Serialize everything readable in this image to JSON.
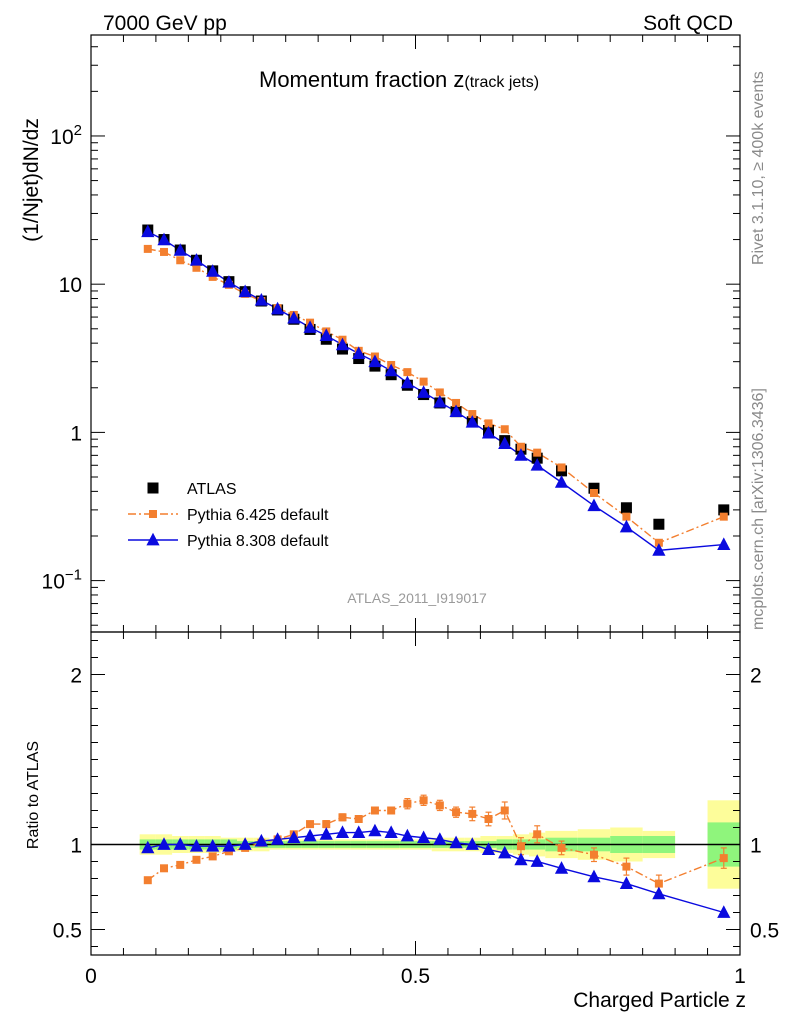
{
  "header": {
    "left": "7000 GeV pp",
    "right": "Soft QCD"
  },
  "side": {
    "rivet": "Rivet 3.1.10, ≥ 400k events",
    "mcplots": "mcplots.cern.ch [arXiv:1306.3436]"
  },
  "chart_data": {
    "type": "scatter",
    "title_main": "Momentum fraction z",
    "title_sub": "(track jets)",
    "analysis_tag": "ATLAS_2011_I919017",
    "xlabel": "Charged Particle z",
    "ylabel": "(1/Njet)dN/dz",
    "ratio_ylabel": "Ratio to ATLAS",
    "xlim": [
      0,
      1
    ],
    "ylim": [
      0.045,
      480
    ],
    "yscale": "log",
    "ratio_ylim": [
      0.35,
      2.25
    ],
    "x_ticks": [
      "0",
      "0.5",
      "1"
    ],
    "y_ticks": [
      {
        "value": 100,
        "base": "10",
        "exp": "2"
      },
      {
        "value": 10,
        "base": "10",
        "exp": ""
      },
      {
        "value": 1,
        "base": "1",
        "exp": ""
      },
      {
        "value": 0.1,
        "base": "10",
        "exp": "−1"
      }
    ],
    "ratio_ticks": [
      "0.5",
      "1",
      "2"
    ],
    "legend_position": "bottom-left",
    "series": [
      {
        "name": "ATLAS",
        "color": "#000000",
        "marker": "square",
        "x": [
          0.0875,
          0.1125,
          0.1375,
          0.1625,
          0.1875,
          0.2125,
          0.2375,
          0.2625,
          0.2875,
          0.3125,
          0.3375,
          0.3625,
          0.3875,
          0.4125,
          0.4375,
          0.4625,
          0.4875,
          0.5125,
          0.5375,
          0.5625,
          0.5875,
          0.6125,
          0.6375,
          0.6625,
          0.6875,
          0.725,
          0.775,
          0.825,
          0.875,
          0.975
        ],
        "y": [
          23.2,
          20.0,
          17.0,
          14.5,
          12.3,
          10.4,
          8.9,
          7.7,
          6.7,
          5.8,
          4.95,
          4.25,
          3.65,
          3.15,
          2.8,
          2.45,
          2.08,
          1.8,
          1.58,
          1.38,
          1.18,
          1.03,
          0.88,
          0.77,
          0.67,
          0.55,
          0.42,
          0.31,
          0.24,
          0.3
        ]
      },
      {
        "name": "Pythia 6.425 default",
        "color": "#f37f2f",
        "marker": "square",
        "line": "dash-dot",
        "x": [
          0.0875,
          0.1125,
          0.1375,
          0.1625,
          0.1875,
          0.2125,
          0.2375,
          0.2625,
          0.2875,
          0.3125,
          0.3375,
          0.3625,
          0.3875,
          0.4125,
          0.4375,
          0.4625,
          0.4875,
          0.5125,
          0.5375,
          0.5625,
          0.5875,
          0.6125,
          0.6375,
          0.6625,
          0.6875,
          0.725,
          0.775,
          0.825,
          0.875,
          0.975
        ],
        "y": [
          17.3,
          16.5,
          14.5,
          12.9,
          11.2,
          9.9,
          8.6,
          7.7,
          6.9,
          6.2,
          5.5,
          4.8,
          4.22,
          3.55,
          3.25,
          2.85,
          2.55,
          2.2,
          1.86,
          1.58,
          1.33,
          1.15,
          1.05,
          0.8,
          0.73,
          0.58,
          0.39,
          0.27,
          0.18,
          0.27
        ]
      },
      {
        "name": "Pythia 8.308 default",
        "color": "#0a0adf",
        "marker": "triangle",
        "line": "solid",
        "x": [
          0.0875,
          0.1125,
          0.1375,
          0.1625,
          0.1875,
          0.2125,
          0.2375,
          0.2625,
          0.2875,
          0.3125,
          0.3375,
          0.3625,
          0.3875,
          0.4125,
          0.4375,
          0.4625,
          0.4875,
          0.5125,
          0.5375,
          0.5625,
          0.5875,
          0.6125,
          0.6375,
          0.6625,
          0.6875,
          0.725,
          0.775,
          0.825,
          0.875,
          0.975
        ],
        "y": [
          22.6,
          19.9,
          16.9,
          14.5,
          12.2,
          10.3,
          8.9,
          7.8,
          6.8,
          5.9,
          5.1,
          4.5,
          3.9,
          3.4,
          3.0,
          2.6,
          2.16,
          1.86,
          1.6,
          1.38,
          1.17,
          0.99,
          0.84,
          0.7,
          0.6,
          0.46,
          0.32,
          0.23,
          0.16,
          0.175
        ]
      }
    ],
    "ratio_series": [
      {
        "name": "Pythia 6.425 default",
        "x": [
          0.0875,
          0.1125,
          0.1375,
          0.1625,
          0.1875,
          0.2125,
          0.2375,
          0.2625,
          0.2875,
          0.3125,
          0.3375,
          0.3625,
          0.3875,
          0.4125,
          0.4375,
          0.4625,
          0.4875,
          0.5125,
          0.5375,
          0.5625,
          0.5875,
          0.6125,
          0.6375,
          0.6625,
          0.6875,
          0.725,
          0.775,
          0.825,
          0.875,
          0.975
        ],
        "y": [
          0.79,
          0.86,
          0.88,
          0.91,
          0.93,
          0.96,
          0.98,
          1.01,
          1.03,
          1.06,
          1.12,
          1.12,
          1.16,
          1.15,
          1.2,
          1.2,
          1.24,
          1.26,
          1.23,
          1.19,
          1.18,
          1.15,
          1.2,
          0.99,
          1.06,
          0.98,
          0.94,
          0.87,
          0.77,
          0.92
        ],
        "err": [
          0.01,
          0.01,
          0.01,
          0.01,
          0.01,
          0.01,
          0.01,
          0.01,
          0.01,
          0.01,
          0.01,
          0.02,
          0.02,
          0.02,
          0.02,
          0.02,
          0.03,
          0.03,
          0.03,
          0.03,
          0.04,
          0.04,
          0.05,
          0.05,
          0.05,
          0.04,
          0.04,
          0.05,
          0.05,
          0.06
        ]
      },
      {
        "name": "Pythia 8.308 default",
        "x": [
          0.0875,
          0.1125,
          0.1375,
          0.1625,
          0.1875,
          0.2125,
          0.2375,
          0.2625,
          0.2875,
          0.3125,
          0.3375,
          0.3625,
          0.3875,
          0.4125,
          0.4375,
          0.4625,
          0.4875,
          0.5125,
          0.5375,
          0.5625,
          0.5875,
          0.6125,
          0.6375,
          0.6625,
          0.6875,
          0.725,
          0.775,
          0.825,
          0.875,
          0.975
        ],
        "y": [
          0.98,
          1.0,
          1.0,
          0.99,
          0.99,
          0.99,
          1.0,
          1.02,
          1.03,
          1.04,
          1.05,
          1.06,
          1.07,
          1.07,
          1.08,
          1.07,
          1.05,
          1.04,
          1.03,
          1.01,
          1.0,
          0.97,
          0.95,
          0.91,
          0.9,
          0.86,
          0.81,
          0.77,
          0.71,
          0.6
        ]
      }
    ],
    "ratio_bands": {
      "edges": [
        0.075,
        0.1,
        0.125,
        0.15,
        0.175,
        0.2,
        0.225,
        0.25,
        0.275,
        0.3,
        0.325,
        0.35,
        0.375,
        0.4,
        0.425,
        0.45,
        0.475,
        0.5,
        0.525,
        0.55,
        0.575,
        0.6,
        0.625,
        0.65,
        0.675,
        0.7,
        0.75,
        0.8,
        0.85,
        0.9,
        0.95,
        1.0
      ],
      "stat_half": [
        0.03,
        0.03,
        0.03,
        0.03,
        0.03,
        0.03,
        0.02,
        0.02,
        0.02,
        0.02,
        0.02,
        0.02,
        0.02,
        0.02,
        0.02,
        0.02,
        0.02,
        0.02,
        0.02,
        0.02,
        0.02,
        0.02,
        0.03,
        0.03,
        0.03,
        0.04,
        0.04,
        0.05,
        0.05,
        null,
        0.13
      ],
      "total_half": [
        0.06,
        0.06,
        0.05,
        0.05,
        0.05,
        0.04,
        0.04,
        0.04,
        0.03,
        0.03,
        0.03,
        0.03,
        0.03,
        0.03,
        0.03,
        0.03,
        0.03,
        0.03,
        0.04,
        0.04,
        0.04,
        0.05,
        0.05,
        0.06,
        0.07,
        0.08,
        0.09,
        0.1,
        0.08,
        null,
        0.26
      ],
      "stat_color": "#8ff57c",
      "total_color": "#fdfd9a"
    }
  }
}
